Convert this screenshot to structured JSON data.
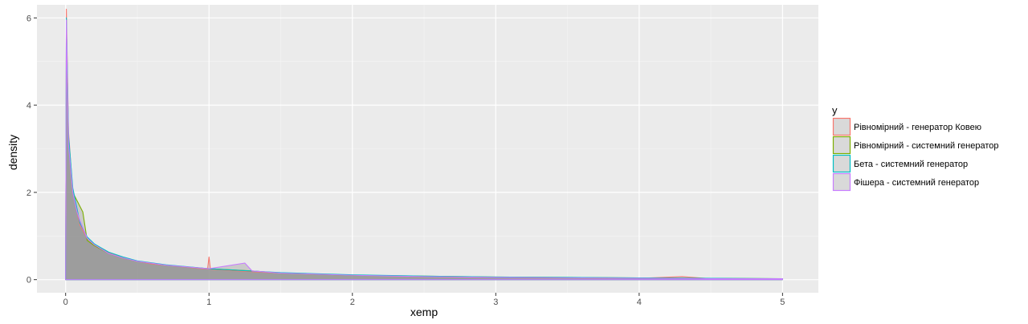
{
  "chart_data": {
    "type": "area",
    "xlabel": "xemp",
    "ylabel": "density",
    "xlim": [
      -0.2,
      5.25
    ],
    "ylim": [
      -0.3,
      6.3
    ],
    "x_ticks": [
      0,
      1,
      2,
      3,
      4,
      5
    ],
    "y_ticks": [
      0,
      2,
      4,
      6
    ],
    "grid": true,
    "legend_title": "y",
    "legend_placement": "right",
    "series": [
      {
        "name": "Рівномірний - генератор Ковею",
        "color": "#F8766D",
        "x": [
          0,
          0.005,
          0.02,
          0.05,
          0.1,
          0.15,
          0.2,
          0.3,
          0.4,
          0.5,
          0.6,
          0.8,
          0.99,
          1.0,
          1.01,
          1.2,
          1.5,
          2,
          2.5,
          3,
          3.5,
          4,
          4.3,
          4.5,
          5
        ],
        "y": [
          0,
          6.2,
          3.4,
          2.0,
          1.25,
          0.95,
          0.8,
          0.62,
          0.5,
          0.42,
          0.36,
          0.3,
          0.24,
          0.52,
          0.24,
          0.2,
          0.15,
          0.1,
          0.07,
          0.05,
          0.04,
          0.03,
          0.07,
          0.02,
          0.02
        ]
      },
      {
        "name": "Рівномірний - системний генератор",
        "color": "#7CAE00",
        "x": [
          0,
          0.005,
          0.02,
          0.05,
          0.12,
          0.15,
          0.2,
          0.3,
          0.4,
          0.5,
          0.7,
          1.0,
          1.3,
          1.5,
          2,
          2.5,
          3,
          3.5,
          4,
          4.5,
          5
        ],
        "y": [
          0,
          5.9,
          3.2,
          2.0,
          1.55,
          0.9,
          0.78,
          0.6,
          0.5,
          0.42,
          0.33,
          0.25,
          0.2,
          0.15,
          0.1,
          0.08,
          0.06,
          0.05,
          0.04,
          0.03,
          0.02
        ]
      },
      {
        "name": "Бета - системний генератор",
        "color": "#00BFC4",
        "x": [
          0,
          0.005,
          0.02,
          0.05,
          0.1,
          0.15,
          0.2,
          0.3,
          0.4,
          0.5,
          0.7,
          1.0,
          1.5,
          2,
          2.5,
          3,
          3.5,
          4,
          4.5,
          5
        ],
        "y": [
          0,
          6.0,
          3.3,
          2.1,
          1.3,
          0.98,
          0.82,
          0.63,
          0.52,
          0.43,
          0.34,
          0.25,
          0.16,
          0.11,
          0.08,
          0.06,
          0.05,
          0.04,
          0.03,
          0.02
        ]
      },
      {
        "name": "Фішера - системний генератор",
        "color": "#C77CFF",
        "x": [
          0,
          0.005,
          0.02,
          0.05,
          0.07,
          0.08,
          0.1,
          0.15,
          0.2,
          0.3,
          0.4,
          0.5,
          0.7,
          1.0,
          1.25,
          1.3,
          1.5,
          2,
          2.5,
          3,
          3.5,
          4,
          4.5,
          5
        ],
        "y": [
          0,
          5.95,
          3.1,
          2.0,
          1.7,
          1.55,
          1.35,
          0.95,
          0.8,
          0.6,
          0.5,
          0.42,
          0.33,
          0.25,
          0.38,
          0.2,
          0.15,
          0.1,
          0.07,
          0.05,
          0.04,
          0.03,
          0.02,
          0.02
        ]
      }
    ]
  }
}
